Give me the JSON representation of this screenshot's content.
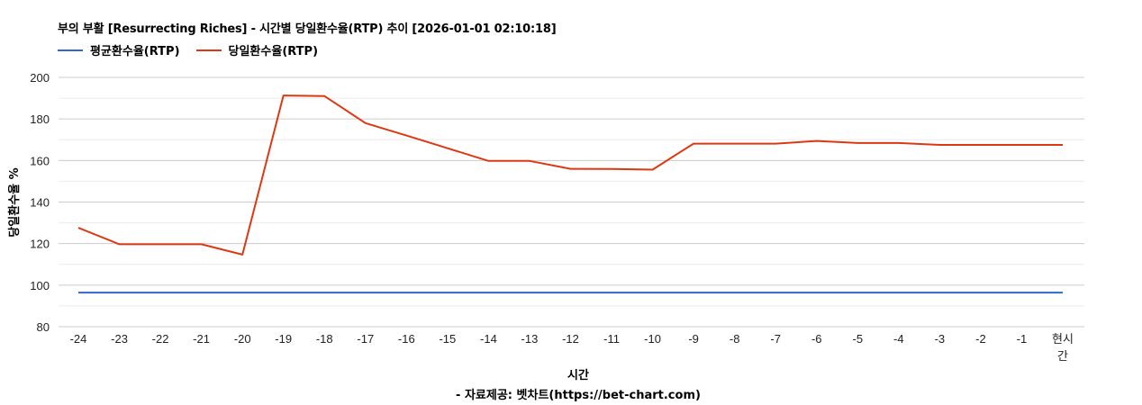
{
  "chart_data": {
    "type": "line",
    "title": "부의 부활 [Resurrecting Riches] - 시간별 당일환수율(RTP) 추이 [2026-01-01 02:10:18]",
    "xlabel": "시간",
    "ylabel": "당일환수율 %",
    "source": "- 자료제공: 벳차트(https://bet-chart.com)",
    "ylim": [
      80,
      200
    ],
    "yticks": [
      80,
      100,
      120,
      140,
      160,
      180,
      200
    ],
    "grid": true,
    "legend_position": "top-left",
    "categories": [
      "-24",
      "-23",
      "-22",
      "-21",
      "-20",
      "-19",
      "-18",
      "-17",
      "-16",
      "-15",
      "-14",
      "-13",
      "-12",
      "-11",
      "-10",
      "-9",
      "-8",
      "-7",
      "-6",
      "-5",
      "-4",
      "-3",
      "-2",
      "-1",
      "현시간"
    ],
    "series": [
      {
        "name": "평균환수율(RTP)",
        "color": "#3366CC",
        "values": [
          96.4,
          96.4,
          96.4,
          96.4,
          96.4,
          96.4,
          96.4,
          96.4,
          96.4,
          96.4,
          96.4,
          96.4,
          96.4,
          96.4,
          96.4,
          96.4,
          96.4,
          96.4,
          96.4,
          96.4,
          96.4,
          96.4,
          96.4,
          96.4,
          96.4
        ]
      },
      {
        "name": "당일환수율(RTP)",
        "color": "#DC3912",
        "values": [
          127.6,
          119.7,
          119.7,
          119.7,
          114.7,
          191.3,
          191.0,
          178.0,
          172.0,
          165.9,
          159.8,
          159.8,
          156.0,
          155.9,
          155.6,
          168.1,
          168.1,
          168.1,
          169.4,
          168.4,
          168.4,
          167.5,
          167.5,
          167.5,
          167.5
        ]
      }
    ]
  }
}
